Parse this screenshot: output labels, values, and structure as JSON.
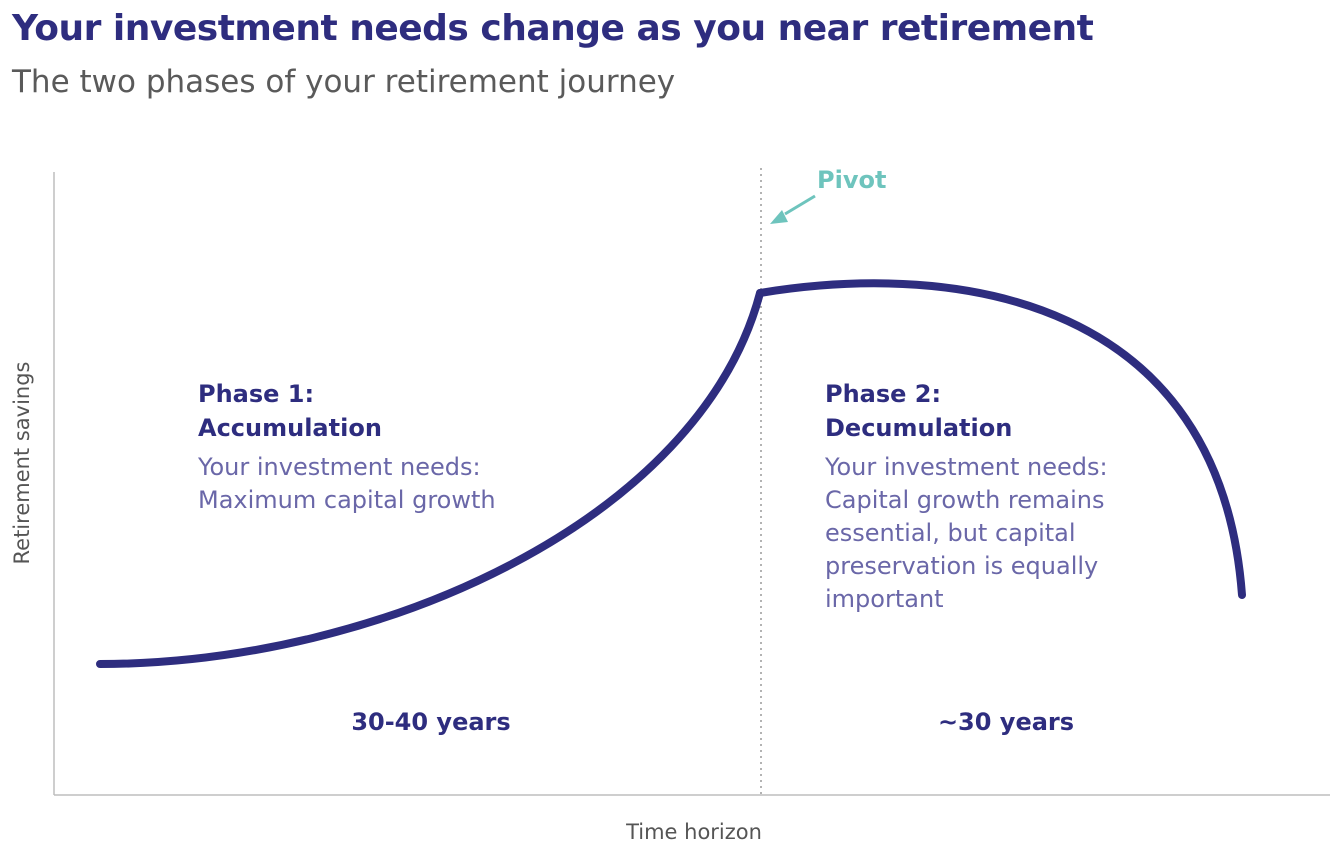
{
  "title": "Your investment needs change as you near retirement",
  "subtitle": "The two phases of your retirement journey",
  "axes": {
    "y_label": "Retirement savings",
    "x_label": "Time horizon"
  },
  "pivot": {
    "label": "Pivot"
  },
  "phases": [
    {
      "title_line1": "Phase 1:",
      "title_line2": "Accumulation",
      "desc_lines": [
        "Your investment needs:",
        "Maximum capital growth"
      ],
      "duration": "30-40 years"
    },
    {
      "title_line1": "Phase 2:",
      "title_line2": "Decumulation",
      "desc_lines": [
        "Your investment needs:",
        "Capital growth remains",
        "essential, but capital",
        "preservation is equally",
        "important"
      ],
      "duration": "~30 years"
    }
  ],
  "colors": {
    "navy": "#2e2d7f",
    "desc": "#6a67a8",
    "pivot": "#6ec4bd",
    "axis": "#bdbdbd",
    "divider": "#9a9a9a"
  }
}
